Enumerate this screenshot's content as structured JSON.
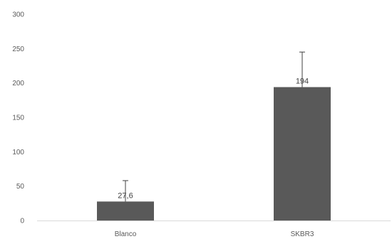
{
  "chart_data": {
    "type": "bar",
    "categories": [
      "Blanco",
      "SKBR3"
    ],
    "values": [
      27.6,
      194
    ],
    "error_upper": [
      30.4,
      51
    ],
    "data_labels": [
      "27,6",
      "194"
    ],
    "ylim": [
      0,
      300
    ],
    "yticks": [
      0,
      50,
      100,
      150,
      200,
      250,
      300
    ],
    "ytick_labels": [
      "0",
      "50",
      "100",
      "150",
      "200",
      "250",
      "300"
    ],
    "grid": false,
    "legend": "none",
    "title": "",
    "xlabel": "",
    "ylabel": "",
    "colors": {
      "bar": "#595959",
      "axis": "#d9d9d9",
      "error_bar": "#404040"
    }
  }
}
